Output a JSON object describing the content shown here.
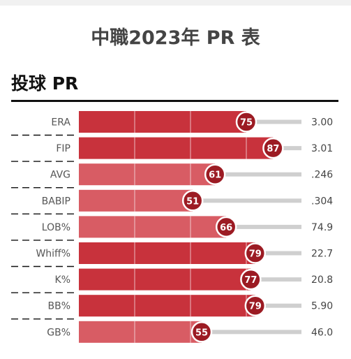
{
  "page": {
    "title": "中職2023年 PR 表",
    "section": "投球 PR"
  },
  "chart_data": {
    "type": "bar",
    "title": "中職2023年 PR 表",
    "subtitle": "投球 PR",
    "categories": [
      "ERA",
      "FIP",
      "AVG",
      "BABIP",
      "LOB%",
      "Whiff%",
      "K%",
      "BB%",
      "GB%"
    ],
    "values": [
      75,
      87,
      61,
      51,
      66,
      79,
      77,
      79,
      55
    ],
    "stat_values": [
      "3.00",
      "3.01",
      ".246",
      ".304",
      "74.9",
      "22.7",
      "20.8",
      "5.90",
      "46.0"
    ],
    "xlim": [
      0,
      100
    ],
    "gridlines": [
      25,
      50,
      75
    ],
    "colors": {
      "bar_strong": "#c8323c",
      "bar_light": "#d85c64",
      "badge": "#9c1b23",
      "track": "#cfcfcf"
    }
  }
}
